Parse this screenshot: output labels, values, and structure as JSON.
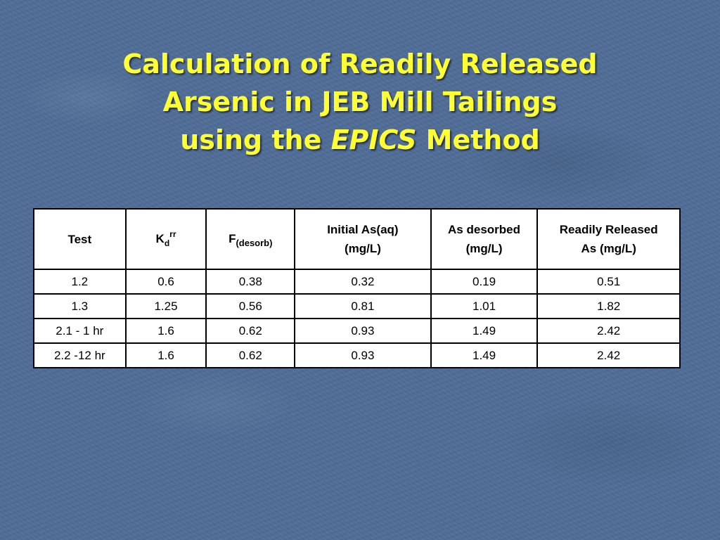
{
  "title": {
    "line1": "Calculation of Readily Released",
    "line2": "Arsenic in JEB Mill Tailings",
    "line3_prefix": "using the ",
    "line3_italic": "EPICS",
    "line3_suffix": " Method"
  },
  "colors": {
    "background": "#4f6d97",
    "title": "#ffff33"
  },
  "table": {
    "headers": {
      "test": "Test",
      "kd_base": "K",
      "kd_sub": "d",
      "kd_sup": "rr",
      "f_base": "F",
      "f_sub": "(desorb)",
      "initial_line1": "Initial As(aq)",
      "initial_line2": "(mg/L)",
      "desorbed_line1": "As desorbed",
      "desorbed_line2": "(mg/L)",
      "released_line1": "Readily Released",
      "released_line2": "As (mg/L)"
    },
    "rows": [
      [
        "1.2",
        "0.6",
        "0.38",
        "0.32",
        "0.19",
        "0.51"
      ],
      [
        "1.3",
        "1.25",
        "0.56",
        "0.81",
        "1.01",
        "1.82"
      ],
      [
        "2.1 - 1 hr",
        "1.6",
        "0.62",
        "0.93",
        "1.49",
        "2.42"
      ],
      [
        "2.2 -12 hr",
        "1.6",
        "0.62",
        "0.93",
        "1.49",
        "2.42"
      ]
    ]
  }
}
